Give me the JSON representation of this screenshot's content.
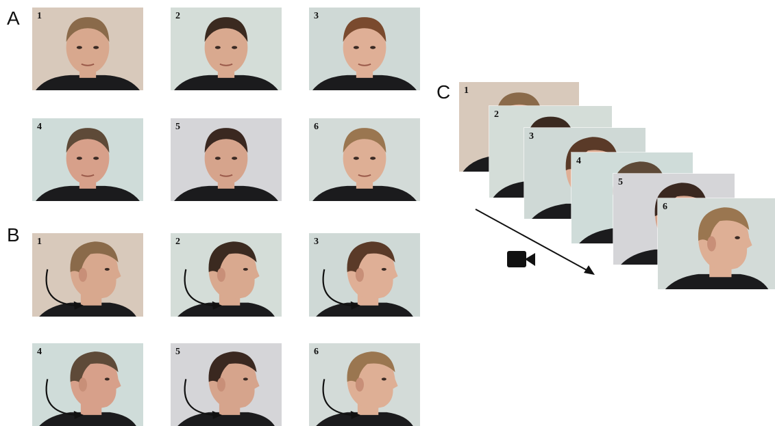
{
  "panels": {
    "a": {
      "label": "A"
    },
    "b": {
      "label": "B"
    },
    "c": {
      "label": "C"
    }
  },
  "frontal_photos": [
    {
      "number": "1",
      "bg": "#d8c9bb",
      "skin": "#d8a88e",
      "hair": "#8a6a4a"
    },
    {
      "number": "2",
      "bg": "#d4ddd8",
      "skin": "#d9a98f",
      "hair": "#3b2a20"
    },
    {
      "number": "3",
      "bg": "#cfd9d6",
      "skin": "#dfaf96",
      "hair": "#7a4a2e"
    },
    {
      "number": "4",
      "bg": "#cfdcd9",
      "skin": "#d7a08a",
      "hair": "#5e4a38"
    },
    {
      "number": "5",
      "bg": "#d5d5d8",
      "skin": "#d6a48c",
      "hair": "#3a2820"
    },
    {
      "number": "6",
      "bg": "#d3dbd8",
      "skin": "#deaf95",
      "hair": "#9a7650"
    }
  ],
  "profile_photos": [
    {
      "number": "1",
      "bg": "#d8c9bb",
      "skin": "#d8a88e",
      "hair": "#8a6a4a"
    },
    {
      "number": "2",
      "bg": "#d4ddd8",
      "skin": "#d9a98f",
      "hair": "#3b2a20"
    },
    {
      "number": "3",
      "bg": "#cfd9d6",
      "skin": "#dfaf96",
      "hair": "#5a3a28"
    },
    {
      "number": "4",
      "bg": "#cfdcd9",
      "skin": "#d7a08a",
      "hair": "#5e4a38"
    },
    {
      "number": "5",
      "bg": "#d5d5d8",
      "skin": "#d6a48c",
      "hair": "#3a2820"
    },
    {
      "number": "6",
      "bg": "#d3dbd8",
      "skin": "#deaf95",
      "hair": "#9a7650"
    }
  ],
  "video_stack": [
    {
      "number": "1",
      "bg": "#d8c9bb",
      "skin": "#d8a88e",
      "hair": "#8a6a4a"
    },
    {
      "number": "2",
      "bg": "#d4ddd8",
      "skin": "#d9a98f",
      "hair": "#3b2a20"
    },
    {
      "number": "3",
      "bg": "#cfd9d6",
      "skin": "#dfaf96",
      "hair": "#5a3a28"
    },
    {
      "number": "4",
      "bg": "#cfdcd9",
      "skin": "#d7a08a",
      "hair": "#5e4a38"
    },
    {
      "number": "5",
      "bg": "#d5d5d8",
      "skin": "#d6a48c",
      "hair": "#3a2820"
    },
    {
      "number": "6",
      "bg": "#d3dbd8",
      "skin": "#deaf95",
      "hair": "#9a7650"
    }
  ],
  "icons": {
    "video_camera": "video-camera-icon",
    "head_turn_arrow": "curved-arrow-icon",
    "sequence_arrow": "diagonal-arrow-icon"
  },
  "colors": {
    "clothing": "#1b1b1d",
    "ink": "#111111"
  }
}
